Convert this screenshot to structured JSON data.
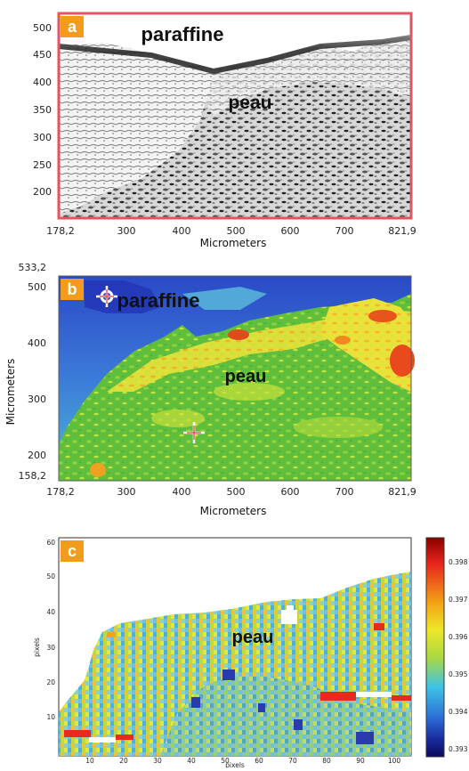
{
  "panels": [
    {
      "badge": "a",
      "x_ticks": [
        "178,2",
        "300",
        "400",
        "500",
        "600",
        "700",
        "821,9"
      ],
      "y_ticks": [
        "500",
        "450",
        "400",
        "350",
        "300",
        "250",
        "200"
      ],
      "x_label": "Micrometers",
      "labels": [
        "paraffine",
        "peau"
      ]
    },
    {
      "badge": "b",
      "x_ticks": [
        "178,2",
        "300",
        "400",
        "500",
        "600",
        "700",
        "821,9"
      ],
      "y_ticks": [
        "533,2",
        "500",
        "400",
        "300",
        "200",
        "158,2"
      ],
      "x_label": "Micrometers",
      "y_label": "Micrometers",
      "labels": [
        "paraffine",
        "peau"
      ]
    },
    {
      "badge": "c",
      "x_ticks": [
        "10",
        "20",
        "30",
        "40",
        "50",
        "60",
        "70",
        "80",
        "90",
        "100"
      ],
      "y_ticks": [
        "60",
        "50",
        "40",
        "30",
        "20",
        "10"
      ],
      "x_label": "pixels",
      "y_label": "pixels",
      "labels": [
        "peau"
      ],
      "colorbar_ticks": [
        "0.398",
        "0.397",
        "0.396",
        "0.395",
        "0.394",
        "0.393"
      ],
      "colorbar_colors": [
        "#8b0000",
        "#e8261d",
        "#f2a516",
        "#ede72a",
        "#a9d843",
        "#3fc4e6",
        "#2c6fd6",
        "#1a2a9c",
        "#0a0a5c"
      ]
    }
  ]
}
